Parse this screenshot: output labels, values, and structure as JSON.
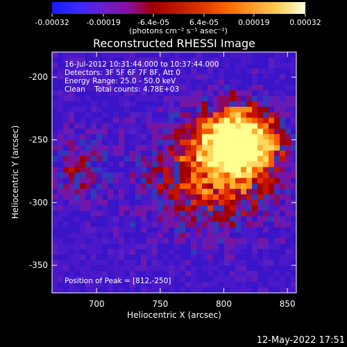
{
  "colorbar": {
    "tick_labels": [
      "-0.00032",
      "-0.00019",
      "-6.4e-05",
      "6.4e-05",
      "0.00019",
      "0.00032"
    ],
    "tick_values": [
      -0.00032,
      -0.00019,
      -6.4e-05,
      6.4e-05,
      0.00019,
      0.00032
    ],
    "range": [
      -0.00032,
      0.00032
    ],
    "units_label": "(photons cm⁻² s⁻¹ asec⁻²)",
    "colors": [
      "#1a1aff",
      "#3a2aff",
      "#6a1fd0",
      "#8a10a0",
      "#a00000",
      "#c01a00",
      "#e03a00",
      "#ff6a00",
      "#ffa030",
      "#ffd060",
      "#ffffe0"
    ]
  },
  "chart_data": {
    "type": "heatmap",
    "title": "Reconstructed RHESSI Image",
    "xlabel": "Heliocentric X (arcsec)",
    "ylabel": "Heliocentric Y (arcsec)",
    "xlim": [
      665,
      857
    ],
    "ylim": [
      -372,
      -180
    ],
    "xticks": [
      700,
      750,
      800,
      850
    ],
    "yticks": [
      -200,
      -250,
      -300,
      -350
    ],
    "annotations": [
      "16-Jul-2012 10:31:44.000 to 10:37:44.000",
      "Detectors: 3F 5F 6F 7F 8F, Att 0",
      "Energy Range: 25.0 - 50.0 keV",
      "Clean    Total counts: 4.78E+03"
    ],
    "peak_text": "Position of Peak = [812,-250]",
    "peak": [
      812,
      -250
    ],
    "grid": false
  },
  "footer": {
    "timestamp": "12-May-2022 17:51"
  }
}
